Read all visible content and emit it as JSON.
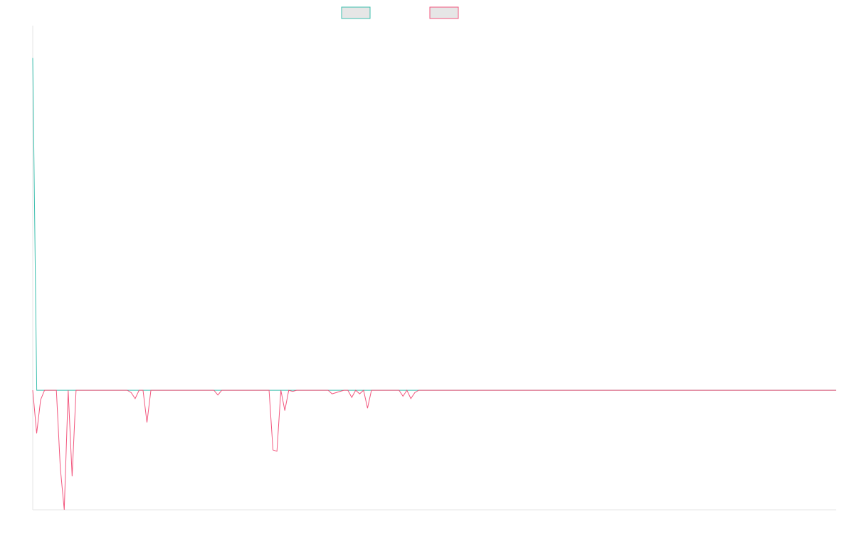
{
  "chart_data": {
    "type": "line",
    "title": "",
    "xlabel": "",
    "ylabel": "",
    "colors": {
      "series_1": "#3cbfae",
      "series_2": "#f2577e",
      "axis": "#e6e6e6",
      "legend_fill": "#e6e6e6"
    },
    "ylim": [
      -100,
      305
    ],
    "series": [
      {
        "name": "",
        "values": [
          278,
          0,
          0,
          0,
          0,
          0,
          0,
          0,
          0,
          0,
          0,
          0,
          0,
          0,
          0,
          0,
          0,
          0,
          0,
          0,
          0,
          0,
          0,
          0,
          0,
          0,
          0,
          0,
          0,
          0,
          0,
          0,
          0,
          0,
          0,
          0,
          0,
          0,
          0,
          0,
          0,
          0,
          0,
          0,
          0,
          0,
          0,
          0,
          0,
          0,
          0,
          0,
          0,
          0,
          0,
          0,
          0,
          0,
          0,
          0,
          0,
          0,
          0,
          0,
          0,
          0,
          0,
          0,
          0,
          0,
          0,
          0,
          0,
          0,
          0,
          0,
          0,
          0,
          0,
          0,
          0,
          0,
          0,
          0,
          0,
          0,
          0,
          0,
          0,
          0,
          0,
          0,
          0,
          0,
          0,
          0,
          0,
          0,
          0,
          0,
          0,
          0,
          0,
          0,
          0,
          0,
          0,
          0,
          0,
          0,
          0,
          0,
          0,
          0,
          0,
          0,
          0,
          0,
          0,
          0,
          0,
          0,
          0,
          0,
          0,
          0,
          0,
          0,
          0,
          0,
          0,
          0,
          0,
          0,
          0,
          0,
          0,
          0,
          0,
          0,
          0,
          0,
          0,
          0,
          0,
          0,
          0,
          0,
          0,
          0,
          0,
          0,
          0,
          0,
          0,
          0,
          0,
          0,
          0,
          0,
          0,
          0,
          0,
          0,
          0,
          0,
          0,
          0,
          0,
          0,
          0,
          0,
          0,
          0,
          0,
          0,
          0,
          0,
          0,
          0,
          0,
          0,
          0,
          0,
          0,
          0,
          0,
          0,
          0,
          0,
          0,
          0,
          0,
          0,
          0,
          0,
          0,
          0,
          0,
          0,
          0,
          0
        ]
      },
      {
        "name": "",
        "values": [
          0,
          -36,
          -8,
          0,
          0,
          0,
          0,
          -65,
          -100,
          0,
          -72,
          0,
          0,
          0,
          0,
          0,
          0,
          0,
          0,
          0,
          0,
          0,
          0,
          0,
          0,
          -2,
          -7,
          0,
          0,
          -27,
          0,
          0,
          0,
          0,
          0,
          0,
          0,
          0,
          0,
          0,
          0,
          0,
          0,
          0,
          0,
          0,
          0,
          -4,
          0,
          0,
          0,
          0,
          0,
          0,
          0,
          0,
          0,
          0,
          0,
          0,
          0,
          -50,
          -51,
          0,
          -17,
          0,
          -1,
          0,
          0,
          0,
          0,
          0,
          0,
          0,
          0,
          0,
          -3,
          -2,
          -1,
          0,
          0,
          -6,
          0,
          -3,
          0,
          -15,
          0,
          0,
          0,
          0,
          0,
          0,
          0,
          0,
          -5,
          0,
          -7,
          -2,
          0,
          0,
          0,
          0,
          0,
          0,
          0,
          0,
          0,
          0,
          0,
          0,
          0,
          0,
          0,
          0,
          0,
          0,
          0,
          0,
          0,
          0,
          0,
          0,
          0,
          0,
          0,
          0,
          0,
          0,
          0,
          0,
          0,
          0,
          0,
          0,
          0,
          0,
          0,
          0,
          0,
          0,
          0,
          0,
          0,
          0,
          0,
          0,
          0,
          0,
          0,
          0,
          0,
          0,
          0,
          0,
          0,
          0,
          0,
          0,
          0,
          0,
          0,
          0,
          0,
          0,
          0,
          0,
          0,
          0,
          0,
          0,
          0,
          0,
          0,
          0,
          0,
          0,
          0,
          0,
          0,
          0,
          0,
          0,
          0,
          0,
          0,
          0,
          0,
          0,
          0,
          0,
          0,
          0,
          0,
          0,
          0,
          0,
          0,
          0,
          0,
          0,
          0,
          0,
          0,
          0,
          0
        ]
      }
    ],
    "legend": [
      "",
      ""
    ]
  }
}
